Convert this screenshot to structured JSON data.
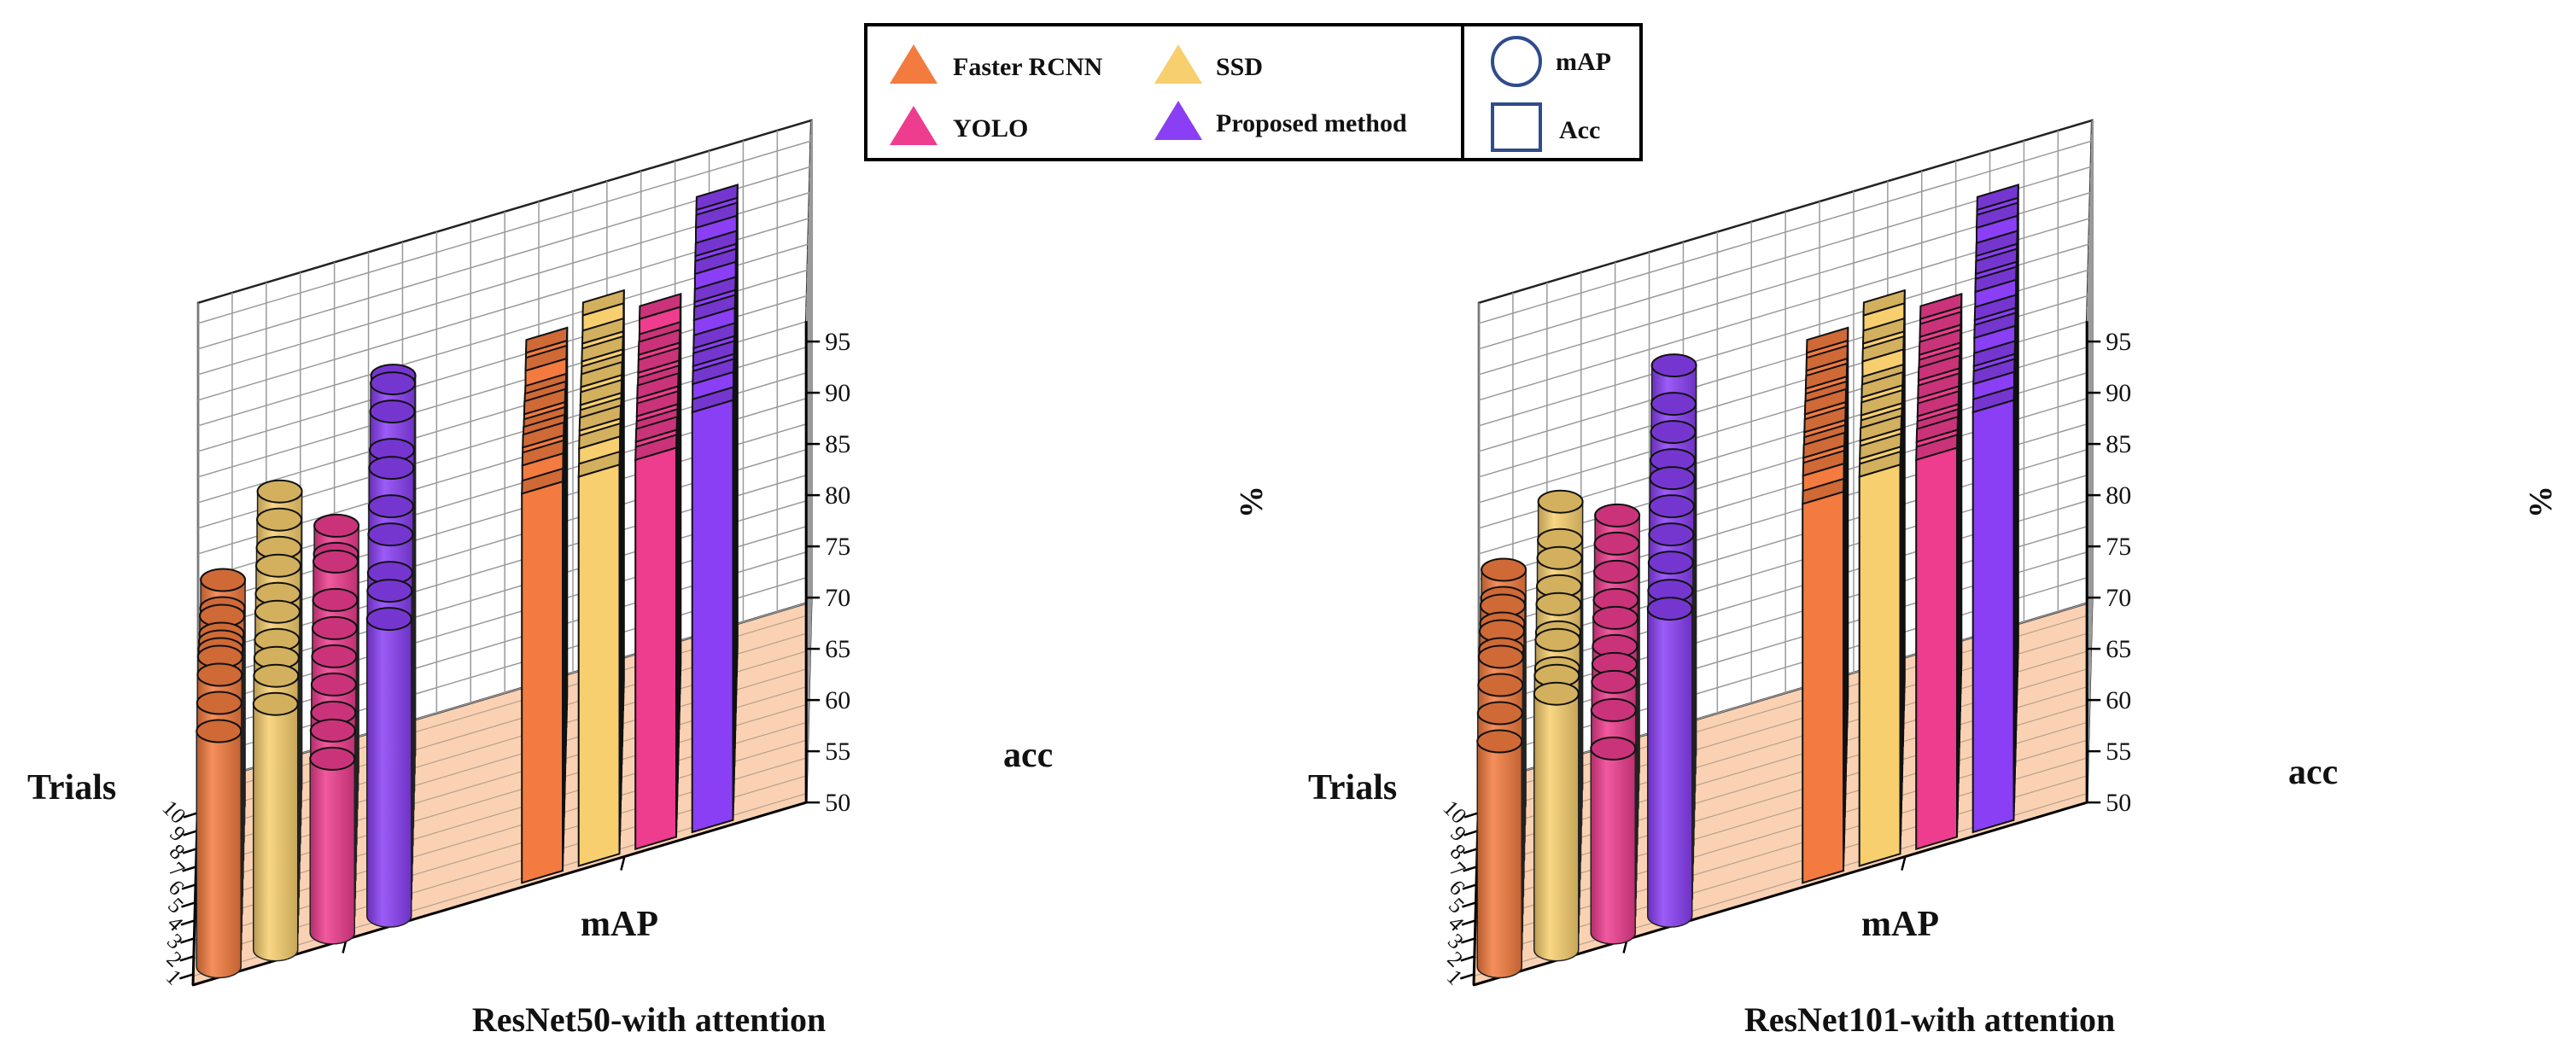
{
  "legend": {
    "methods": [
      {
        "label": "Faster RCNN",
        "color": "#F37B3F"
      },
      {
        "label": "SSD",
        "color": "#F7CF6E"
      },
      {
        "label": "YOLO",
        "color": "#EE3C8E"
      },
      {
        "label": "Proposed method",
        "color": "#8A3FF5"
      }
    ],
    "shapes": [
      {
        "label": "mAP",
        "shape": "circle"
      },
      {
        "label": "Acc",
        "shape": "square"
      }
    ]
  },
  "chart_data": [
    {
      "type": "bar",
      "subtype": "3d-bar",
      "title": "ResNet50-with attention",
      "x_axis_label": "Trials",
      "y_axis_label": "%",
      "metric_labels": [
        "mAP",
        "acc"
      ],
      "trials": [
        "1",
        "2",
        "3",
        "4",
        "5",
        "6",
        "7",
        "8",
        "9",
        "10"
      ],
      "zlim": [
        50,
        95
      ],
      "zticks": [
        "50",
        "55",
        "60",
        "65",
        "70",
        "75",
        "80",
        "85",
        "90",
        "95"
      ],
      "series": [
        {
          "name": "Faster RCNN",
          "metric": "mAP",
          "shape": "cylinder",
          "values": [
            73,
            74,
            75,
            75,
            74,
            73,
            72,
            72,
            71,
            72
          ]
        },
        {
          "name": "SSD",
          "metric": "mAP",
          "shape": "cylinder",
          "values": [
            74,
            75,
            75,
            75,
            76,
            76,
            77,
            77,
            78,
            79
          ]
        },
        {
          "name": "YOLO",
          "metric": "mAP",
          "shape": "cylinder",
          "values": [
            67,
            68,
            68,
            69,
            70,
            71,
            72,
            74,
            73,
            74
          ]
        },
        {
          "name": "Proposed method",
          "metric": "mAP",
          "shape": "cylinder",
          "values": [
            79,
            80,
            80,
            82,
            83,
            85,
            85,
            87,
            88,
            87
          ]
        },
        {
          "name": "Faster RCNN",
          "metric": "acc",
          "shape": "cuboid",
          "values": [
            88,
            89,
            89,
            88,
            87,
            87,
            86,
            85,
            86,
            86
          ]
        },
        {
          "name": "SSD",
          "metric": "acc",
          "shape": "cuboid",
          "values": [
            88,
            89,
            89,
            88,
            88,
            88,
            87,
            87,
            87,
            88
          ]
        },
        {
          "name": "YOLO",
          "metric": "acc",
          "shape": "cuboid",
          "values": [
            88,
            88,
            87,
            87,
            87,
            86,
            86,
            86,
            85,
            86
          ]
        },
        {
          "name": "Proposed method",
          "metric": "acc",
          "shape": "cuboid",
          "values": [
            91,
            92,
            92,
            92,
            93,
            93,
            94,
            94,
            95,
            95
          ]
        }
      ]
    },
    {
      "type": "bar",
      "subtype": "3d-bar",
      "title": "ResNet101-with attention",
      "x_axis_label": "Trials",
      "y_axis_label": "%",
      "metric_labels": [
        "mAP",
        "acc"
      ],
      "trials": [
        "1",
        "2",
        "3",
        "4",
        "5",
        "6",
        "7",
        "8",
        "9",
        "10"
      ],
      "zlim": [
        50,
        95
      ],
      "zticks": [
        "50",
        "55",
        "60",
        "65",
        "70",
        "75",
        "80",
        "85",
        "90",
        "95"
      ],
      "series": [
        {
          "name": "Faster RCNN",
          "metric": "mAP",
          "shape": "cylinder",
          "values": [
            72,
            73,
            74,
            75,
            74,
            74,
            73,
            73,
            72,
            73
          ]
        },
        {
          "name": "SSD",
          "metric": "mAP",
          "shape": "cylinder",
          "values": [
            75,
            75,
            74,
            75,
            74,
            75,
            75,
            76,
            76,
            78
          ]
        },
        {
          "name": "YOLO",
          "metric": "mAP",
          "shape": "cylinder",
          "values": [
            68,
            70,
            71,
            71,
            71,
            72,
            72,
            73,
            74,
            75
          ]
        },
        {
          "name": "Proposed method",
          "metric": "mAP",
          "shape": "cylinder",
          "values": [
            80,
            80,
            81,
            82,
            83,
            84,
            84,
            85,
            86,
            88
          ]
        },
        {
          "name": "Faster RCNN",
          "metric": "acc",
          "shape": "cuboid",
          "values": [
            87,
            88,
            88,
            87,
            87,
            87,
            86,
            86,
            86,
            86
          ]
        },
        {
          "name": "SSD",
          "metric": "acc",
          "shape": "cuboid",
          "values": [
            88,
            88,
            88,
            87,
            87,
            87,
            86,
            87,
            87,
            88
          ]
        },
        {
          "name": "YOLO",
          "metric": "acc",
          "shape": "cuboid",
          "values": [
            88,
            88,
            87,
            87,
            87,
            87,
            86,
            86,
            86,
            86
          ]
        },
        {
          "name": "Proposed method",
          "metric": "acc",
          "shape": "cuboid",
          "values": [
            91,
            92,
            92,
            93,
            93,
            94,
            94,
            94,
            95,
            95
          ]
        }
      ]
    }
  ]
}
